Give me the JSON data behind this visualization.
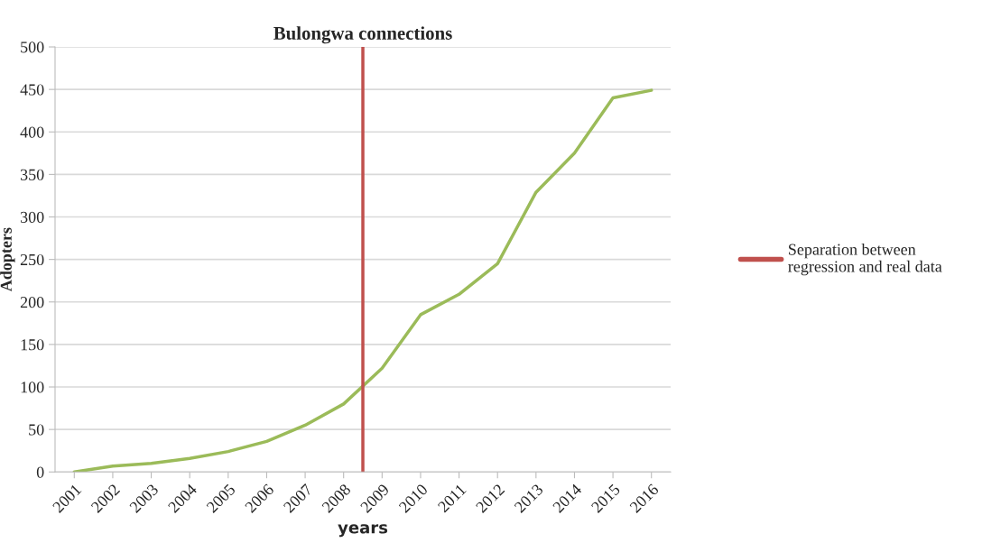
{
  "chart_data": {
    "type": "line",
    "title": "Bulongwa connections",
    "xlabel": "years",
    "ylabel": "Adopters",
    "x": [
      2001,
      2002,
      2003,
      2004,
      2005,
      2006,
      2007,
      2008,
      2009,
      2010,
      2011,
      2012,
      2013,
      2014,
      2015,
      2016
    ],
    "series": [
      {
        "color": "#9bbb59",
        "values": [
          0,
          7,
          10,
          16,
          24,
          36,
          55,
          80,
          122,
          185,
          209,
          245,
          329,
          375,
          440,
          449
        ]
      },
      {
        "name": "Separation between\nregression and real data",
        "color": "#c0504d",
        "x": [
          2008.5,
          2008.5
        ],
        "values": [
          0,
          500
        ]
      }
    ],
    "xlim": [
      2000.5,
      2016.5
    ],
    "xticks": [
      2001,
      2002,
      2003,
      2004,
      2005,
      2006,
      2007,
      2008,
      2009,
      2010,
      2011,
      2012,
      2013,
      2014,
      2015,
      2016
    ],
    "ylim": [
      0,
      500
    ],
    "yticks": [
      0,
      50,
      100,
      150,
      200,
      250,
      300,
      350,
      400,
      450,
      500
    ],
    "grid": "y",
    "legend": "right",
    "marker": "none",
    "line_style": "solid"
  }
}
